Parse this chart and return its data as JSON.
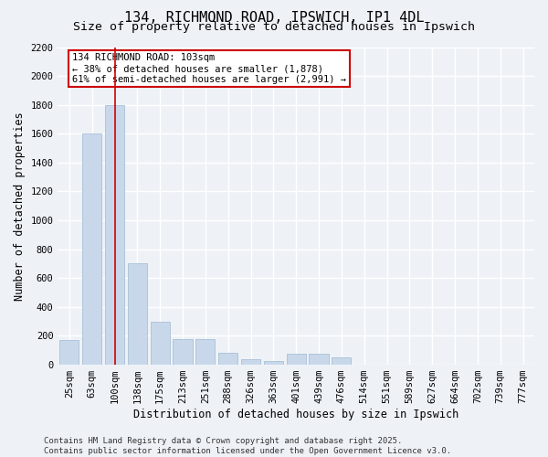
{
  "title": "134, RICHMOND ROAD, IPSWICH, IP1 4DL",
  "subtitle": "Size of property relative to detached houses in Ipswich",
  "xlabel": "Distribution of detached houses by size in Ipswich",
  "ylabel": "Number of detached properties",
  "categories": [
    "25sqm",
    "63sqm",
    "100sqm",
    "138sqm",
    "175sqm",
    "213sqm",
    "251sqm",
    "288sqm",
    "326sqm",
    "363sqm",
    "401sqm",
    "439sqm",
    "476sqm",
    "514sqm",
    "551sqm",
    "589sqm",
    "627sqm",
    "664sqm",
    "702sqm",
    "739sqm",
    "777sqm"
  ],
  "values": [
    170,
    1600,
    1800,
    700,
    300,
    175,
    175,
    80,
    40,
    25,
    75,
    75,
    50,
    0,
    0,
    0,
    0,
    0,
    0,
    0,
    0
  ],
  "bar_color": "#c8d8ea",
  "bar_edge_color": "#a0b8d0",
  "highlight_index": 2,
  "highlight_line_color": "#cc0000",
  "ylim": [
    0,
    2200
  ],
  "yticks": [
    0,
    200,
    400,
    600,
    800,
    1000,
    1200,
    1400,
    1600,
    1800,
    2000,
    2200
  ],
  "annotation_text": "134 RICHMOND ROAD: 103sqm\n← 38% of detached houses are smaller (1,878)\n61% of semi-detached houses are larger (2,991) →",
  "annotation_box_facecolor": "#ffffff",
  "annotation_box_edgecolor": "#cc0000",
  "footer_line1": "Contains HM Land Registry data © Crown copyright and database right 2025.",
  "footer_line2": "Contains public sector information licensed under the Open Government Licence v3.0.",
  "background_color": "#eef2f7",
  "grid_color": "#ffffff",
  "title_fontsize": 11,
  "subtitle_fontsize": 9.5,
  "axis_label_fontsize": 8.5,
  "tick_fontsize": 7.5,
  "footer_fontsize": 6.5
}
